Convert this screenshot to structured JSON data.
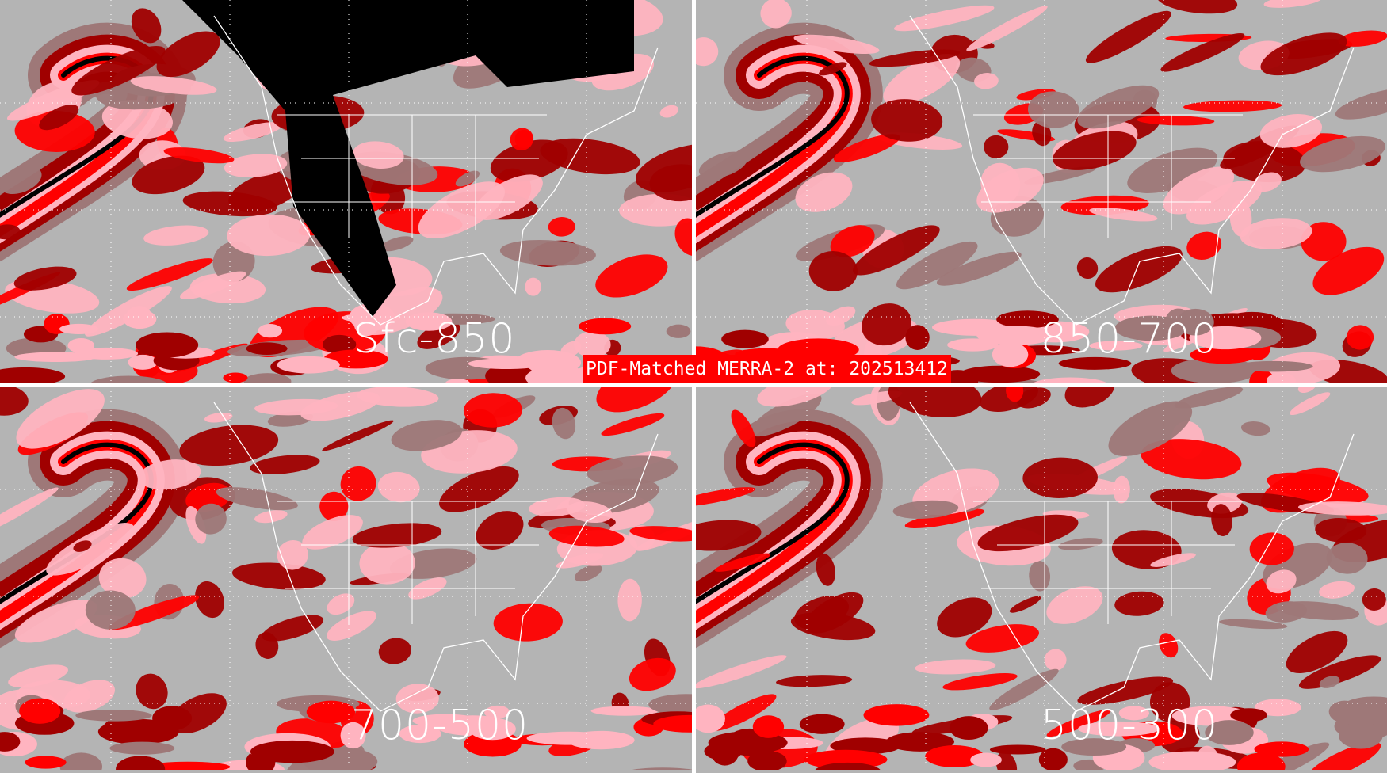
{
  "title": "PDF-Matched MERRA-2 at: 202513412",
  "panels": [
    {
      "label": "Sfc-850"
    },
    {
      "label": "850-700"
    },
    {
      "label": "700-500"
    },
    {
      "label": "500-300"
    }
  ],
  "colors": {
    "background": "#b4b4b4",
    "mauve": "#9e7878",
    "dark_red": "#a00000",
    "red": "#ff0000",
    "pink": "#ffb4c0",
    "black": "#000000",
    "lines": "#ffffff"
  }
}
